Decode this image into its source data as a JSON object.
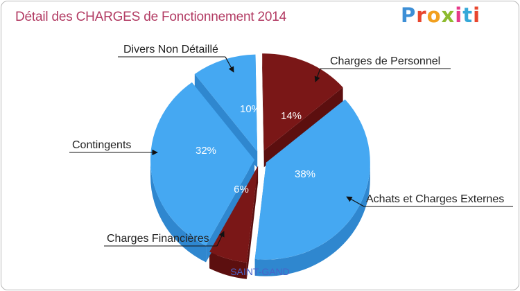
{
  "header": {
    "title": "Détail des CHARGES de Fonctionnement 2014",
    "logo_text": "Proxiti",
    "logo_colors": [
      "#3d8fd6",
      "#e8462e",
      "#f2a01e",
      "#8dbb2f",
      "#e63a8a",
      "#35a8d8",
      "#e8462e"
    ]
  },
  "chart_data": {
    "type": "pie",
    "title": "Détail des CHARGES de Fonctionnement 2014",
    "subtitle": "SAINT-GAND",
    "slices": [
      {
        "label": "Charges de Personnel",
        "value": 14,
        "display": "14%",
        "color": "#7a1717",
        "side_color": "#5c0f0f"
      },
      {
        "label": "Achats et Charges Externes",
        "value": 38,
        "display": "38%",
        "color": "#45a8f2",
        "side_color": "#2f87cf"
      },
      {
        "label": "Charges Financières",
        "value": 6,
        "display": "6%",
        "color": "#7a1717",
        "side_color": "#5c0f0f"
      },
      {
        "label": "Contingents",
        "value": 32,
        "display": "32%",
        "color": "#45a8f2",
        "side_color": "#2f87cf"
      },
      {
        "label": "Divers Non Détaillé",
        "value": 10,
        "display": "10%",
        "color": "#45a8f2",
        "side_color": "#2f87cf"
      }
    ]
  }
}
